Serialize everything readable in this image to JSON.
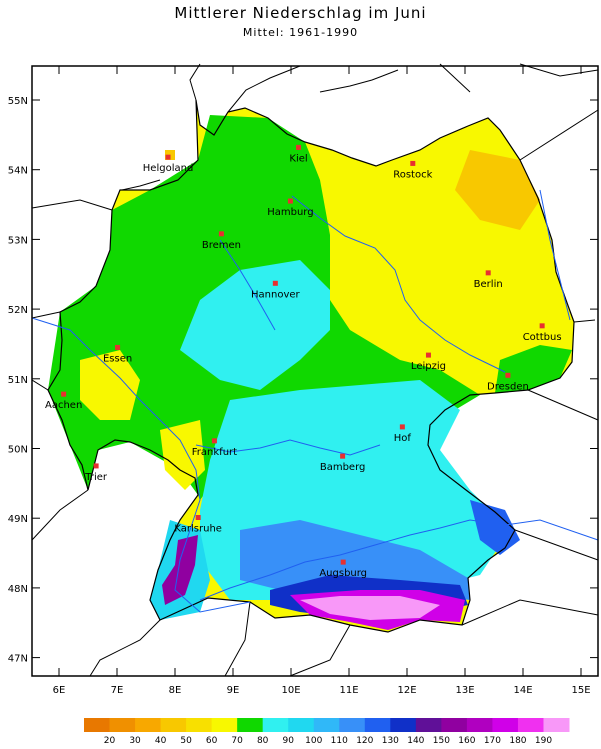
{
  "title": "Mittlerer Niederschlag im Juni",
  "subtitle": "Mittel: 1961-1990",
  "lat_ticks": [
    {
      "label": "55N",
      "value": 55
    },
    {
      "label": "54N",
      "value": 54
    },
    {
      "label": "53N",
      "value": 53
    },
    {
      "label": "52N",
      "value": 52
    },
    {
      "label": "51N",
      "value": 51
    },
    {
      "label": "50N",
      "value": 50
    },
    {
      "label": "49N",
      "value": 49
    },
    {
      "label": "48N",
      "value": 48
    },
    {
      "label": "47N",
      "value": 47
    }
  ],
  "lon_ticks": [
    {
      "label": "6E",
      "value": 6
    },
    {
      "label": "7E",
      "value": 7
    },
    {
      "label": "8E",
      "value": 8
    },
    {
      "label": "9E",
      "value": 9
    },
    {
      "label": "10E",
      "value": 10
    },
    {
      "label": "11E",
      "value": 11
    },
    {
      "label": "12E",
      "value": 12
    },
    {
      "label": "13E",
      "value": 13
    },
    {
      "label": "14E",
      "value": 14
    },
    {
      "label": "15E",
      "value": 15
    }
  ],
  "cities": [
    {
      "name": "Helgoland",
      "lon": 7.88,
      "lat": 54.18
    },
    {
      "name": "Kiel",
      "lon": 10.13,
      "lat": 54.32
    },
    {
      "name": "Rostock",
      "lon": 12.1,
      "lat": 54.09
    },
    {
      "name": "Hamburg",
      "lon": 9.99,
      "lat": 53.55
    },
    {
      "name": "Bremen",
      "lon": 8.8,
      "lat": 53.08
    },
    {
      "name": "Hannover",
      "lon": 9.73,
      "lat": 52.37
    },
    {
      "name": "Berlin",
      "lon": 13.4,
      "lat": 52.52
    },
    {
      "name": "Cottbus",
      "lon": 14.33,
      "lat": 51.76
    },
    {
      "name": "Essen",
      "lon": 7.01,
      "lat": 51.45
    },
    {
      "name": "Leipzig",
      "lon": 12.37,
      "lat": 51.34
    },
    {
      "name": "Dresden",
      "lon": 13.74,
      "lat": 51.05
    },
    {
      "name": "Aachen",
      "lon": 6.08,
      "lat": 50.78
    },
    {
      "name": "Hof",
      "lon": 11.92,
      "lat": 50.31
    },
    {
      "name": "Frankfurt",
      "lon": 8.68,
      "lat": 50.11
    },
    {
      "name": "Trier",
      "lon": 6.64,
      "lat": 49.75
    },
    {
      "name": "Bamberg",
      "lon": 10.89,
      "lat": 49.89
    },
    {
      "name": "Karlsruhe",
      "lon": 8.4,
      "lat": 49.01
    },
    {
      "name": "Augsburg",
      "lon": 10.9,
      "lat": 48.37
    }
  ],
  "legend": {
    "labels": [
      "20",
      "30",
      "40",
      "50",
      "60",
      "70",
      "80",
      "90",
      "100",
      "110",
      "120",
      "130",
      "140",
      "150",
      "160",
      "170",
      "180",
      "190"
    ],
    "colors": [
      "#e87800",
      "#f09000",
      "#f8a800",
      "#f8c800",
      "#f8e000",
      "#f8f800",
      "#10d800",
      "#30f0f0",
      "#20d8f0",
      "#30b8f8",
      "#3890f8",
      "#2060f0",
      "#1030c8",
      "#601098",
      "#9000a0",
      "#b000c0",
      "#d000e8",
      "#f030f0",
      "#f898f8"
    ]
  },
  "colors": {
    "country_fill": "#f8f800",
    "border": "#000000",
    "river": "#2060f0",
    "city_marker": "#e83030"
  }
}
